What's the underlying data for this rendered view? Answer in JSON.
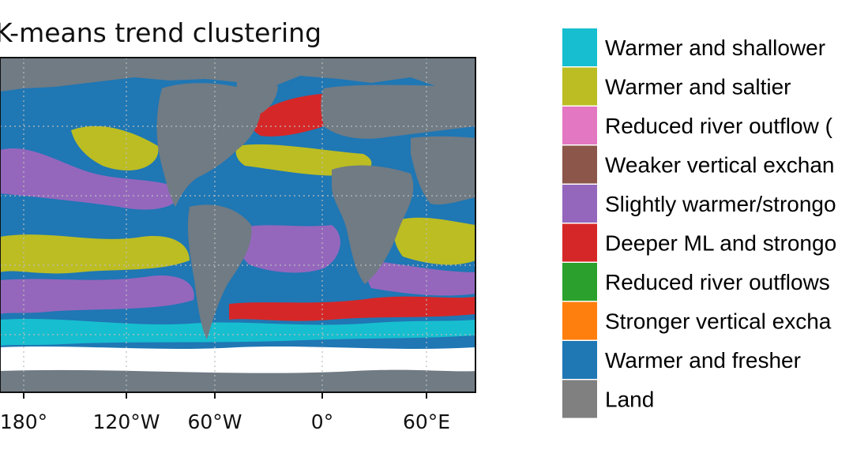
{
  "map": {
    "title": "K-means trend clustering",
    "ocean_color": "#1f77b4",
    "land_color": "#707b84",
    "ice_color": "#ffffff",
    "gridlines": true,
    "xticks": [
      "180°",
      "120°W",
      "60°W",
      "0°",
      "60°E"
    ]
  },
  "legend": {
    "placement": "right",
    "items": [
      {
        "label": "Warmer and shallower",
        "color": "#17becf"
      },
      {
        "label": "Warmer and saltier",
        "color": "#bcbd22"
      },
      {
        "label": "Reduced river outflow (",
        "color": "#e377c2"
      },
      {
        "label": "Weaker vertical exchan",
        "color": "#8c564b"
      },
      {
        "label": "Slightly warmer/strongo",
        "color": "#9467bd"
      },
      {
        "label": "Deeper ML and strongo",
        "color": "#d62728"
      },
      {
        "label": "Reduced river outflows",
        "color": "#2ca02c"
      },
      {
        "label": "Stronger vertical excha",
        "color": "#ff7f0e"
      },
      {
        "label": "Warmer and fresher",
        "color": "#1f77b4"
      },
      {
        "label": "Land",
        "color": "#808080"
      }
    ]
  }
}
